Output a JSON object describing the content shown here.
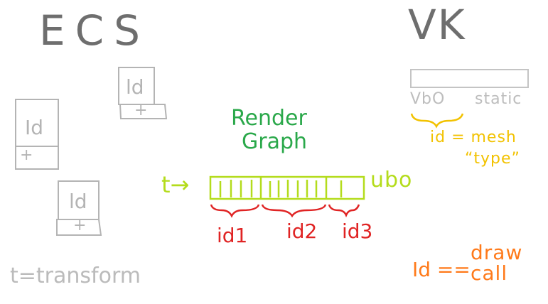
{
  "ecs": {
    "title": "ECS",
    "entities": [
      {
        "id_label": "Id",
        "t_label": "+"
      },
      {
        "id_label": "ld",
        "t_label": "+"
      },
      {
        "id_label": "ld",
        "t_label": "+"
      }
    ],
    "legend": "t=transform"
  },
  "vk": {
    "title": "VK",
    "vbo_label": "VbO",
    "static_label": "static",
    "mesh_line1": "id = mesh",
    "mesh_line2": "“type”"
  },
  "render_graph": {
    "title_line1": "Render",
    "title_line2": "Graph",
    "input_label": "t→",
    "buffer_label": "ubo",
    "groups": [
      {
        "label": "id1"
      },
      {
        "label": "id2"
      },
      {
        "label": "id3"
      }
    ]
  },
  "draw_call": {
    "eq_label": "Id ==",
    "line1": "draw",
    "line2": "call"
  },
  "colors": {
    "ecs_gray": "#6e6e6e",
    "box_gray": "#b4b4b4",
    "render_green": "#2aa84a",
    "buffer_lime": "#b4dc1c",
    "id_red": "#e02424",
    "mesh_yellow": "#f2c200",
    "drawcall_orange": "#ff7a1a"
  }
}
